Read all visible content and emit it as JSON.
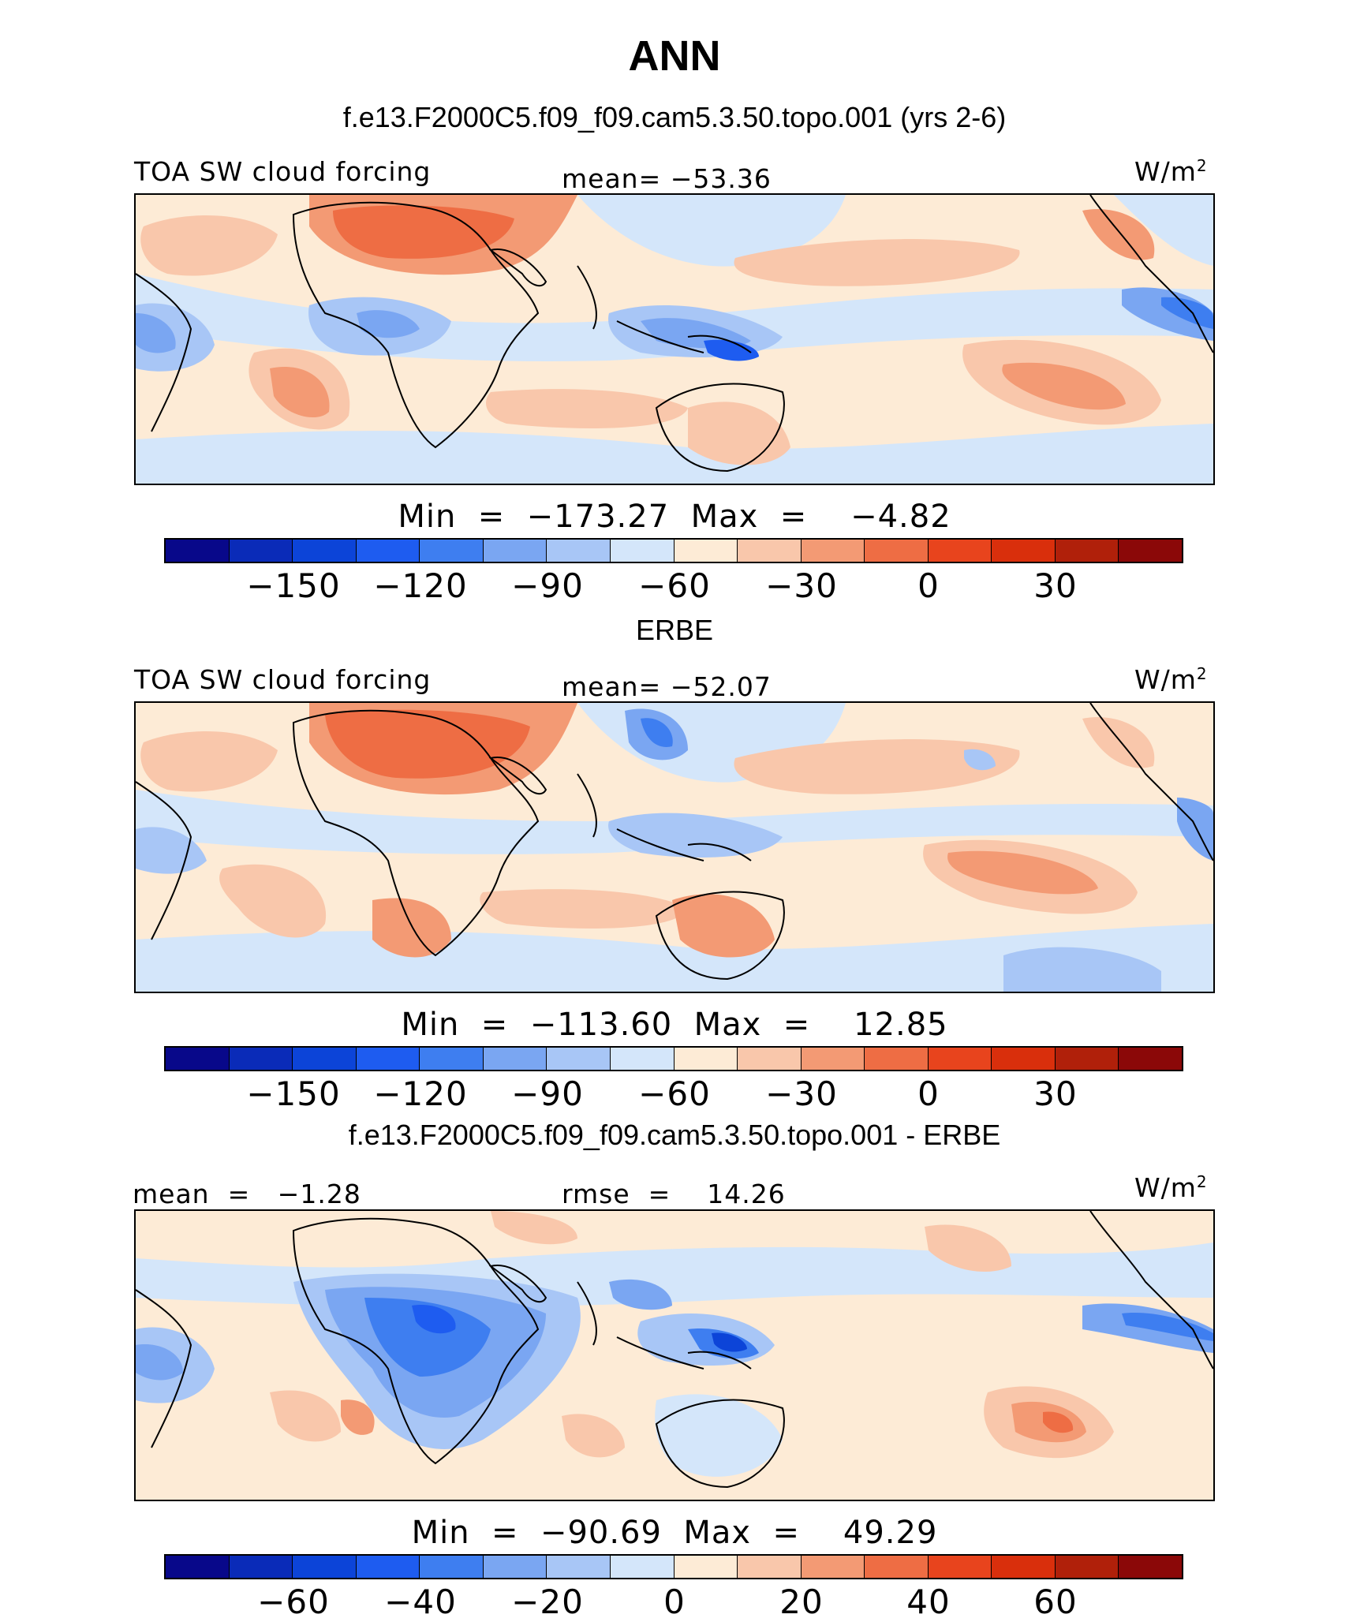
{
  "figure": {
    "title": "ANN",
    "subtitle": "f.e13.F2000C5.f09_f09.cam5.3.50.topo.001 (yrs 2-6)"
  },
  "palette": [
    "#08088a",
    "#0a2bb8",
    "#0c44d8",
    "#1e5cf0",
    "#3e7ef0",
    "#7aa6f2",
    "#a8c6f6",
    "#d4e6fa",
    "#fdebd6",
    "#f9c7ab",
    "#f39a74",
    "#ee6d44",
    "#e8441d",
    "#d92f0c",
    "#b0200a",
    "#8b0808"
  ],
  "panels": [
    {
      "id": "model",
      "left_label": "TOA SW cloud forcing",
      "center_label": "mean= −53.36",
      "units_base": "W/m",
      "units_exp": "2",
      "stats_text": "Min  =  −173.27  Max  =    −4.82",
      "colorbar_ticks": [
        "−150",
        "−120",
        "−90",
        "−60",
        "−30",
        "0",
        "30"
      ]
    },
    {
      "id": "obs",
      "title": "ERBE",
      "left_label": "TOA SW cloud forcing",
      "center_label": "mean= −52.07",
      "units_base": "W/m",
      "units_exp": "2",
      "stats_text": "Min  =  −113.60  Max  =    12.85",
      "colorbar_ticks": [
        "−150",
        "−120",
        "−90",
        "−60",
        "−30",
        "0",
        "30"
      ]
    },
    {
      "id": "diff",
      "title": "f.e13.F2000C5.f09_f09.cam5.3.50.topo.001 - ERBE",
      "left_label": "mean  =   −1.28",
      "center_label": "rmse  =    14.26",
      "units_base": "W/m",
      "units_exp": "2",
      "stats_text": "Min  =  −90.69  Max  =    49.29",
      "colorbar_ticks": [
        "−60",
        "−40",
        "−20",
        "0",
        "20",
        "40",
        "60"
      ]
    }
  ]
}
